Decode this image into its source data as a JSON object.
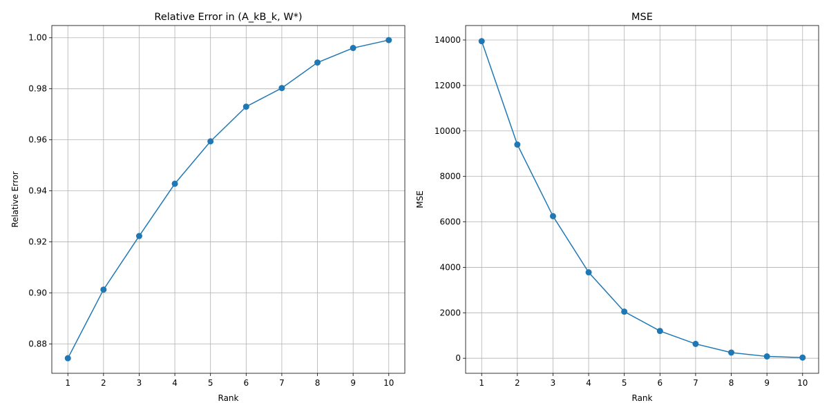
{
  "chart_data": [
    {
      "type": "line",
      "title": "Relative Error in (A_kB_k, W*)",
      "xlabel": "Rank",
      "ylabel": "Relative Error",
      "x": [
        1,
        2,
        3,
        4,
        5,
        6,
        7,
        8,
        9,
        10
      ],
      "xticks": [
        "1",
        "2",
        "3",
        "4",
        "5",
        "6",
        "7",
        "8",
        "9",
        "10"
      ],
      "yticks": [
        "0.88",
        "0.90",
        "0.92",
        "0.94",
        "0.96",
        "0.98",
        "1.00"
      ],
      "ylim": [
        0.8685,
        1.0048
      ],
      "grid": true,
      "color": "#1f77b4",
      "marker": "circle",
      "series": [
        {
          "values": [
            0.8744,
            0.9013,
            0.9223,
            0.9428,
            0.9594,
            0.973,
            0.9803,
            0.9903,
            0.996,
            0.9991
          ]
        }
      ]
    },
    {
      "type": "line",
      "title": "MSE",
      "xlabel": "Rank",
      "ylabel": "MSE",
      "x": [
        1,
        2,
        3,
        4,
        5,
        6,
        7,
        8,
        9,
        10
      ],
      "xticks": [
        "1",
        "2",
        "3",
        "4",
        "5",
        "6",
        "7",
        "8",
        "9",
        "10"
      ],
      "yticks": [
        "0",
        "2000",
        "4000",
        "6000",
        "8000",
        "10000",
        "12000",
        "14000"
      ],
      "ylim": [
        -662,
        14637
      ],
      "grid": true,
      "color": "#1f77b4",
      "marker": "circle",
      "series": [
        {
          "values": [
            13950,
            9400,
            6250,
            3780,
            2050,
            1200,
            630,
            250,
            80,
            30
          ]
        }
      ]
    }
  ]
}
